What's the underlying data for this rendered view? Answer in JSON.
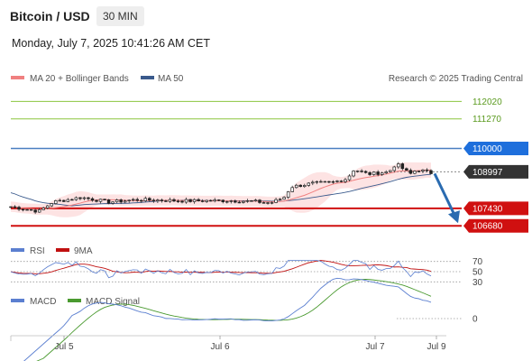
{
  "header": {
    "title": "Bitcoin / USD",
    "timeframe": "30 MIN",
    "datetime": "Monday, July 7, 2025 10:41:26 AM CET"
  },
  "legend": {
    "ma20_label": "MA 20 + Bollinger Bands",
    "ma50_label": "MA 50",
    "credit": "Research © 2025 Trading Central",
    "rsi_label": "RSI",
    "rsi_ma_label": "9MA",
    "macd_label": "MACD",
    "macd_signal_label": "MACD Signal"
  },
  "colors": {
    "ma20": "#f08080",
    "ma50": "#3a5a8c",
    "resistance_green": "#8cc63f",
    "pivot_blue": "#4a7fc1",
    "support_red": "#d01010",
    "arrow": "#2a6bb0",
    "current": "#333333",
    "rsi": "#5b7fd0",
    "rsi_ma": "#c01010",
    "macd": "#5b7fd0",
    "macd_signal": "#4a9a30"
  },
  "chart_data": [
    {
      "type": "candlestick",
      "x_ticks": [
        "Jul 5",
        "Jul 6",
        "Jul 7",
        "Jul 9"
      ],
      "ylim": [
        106300,
        112500
      ],
      "levels": [
        {
          "label": "112020",
          "value": 112020,
          "kind": "resistance"
        },
        {
          "label": "111270",
          "value": 111270,
          "kind": "resistance"
        },
        {
          "label": "110000",
          "value": 110000,
          "kind": "pivot"
        },
        {
          "label": "108997",
          "value": 108997,
          "kind": "current"
        },
        {
          "label": "107430",
          "value": 107430,
          "kind": "support"
        },
        {
          "label": "106680",
          "value": 106680,
          "kind": "support"
        }
      ],
      "forecast_arrow": {
        "from": 108997,
        "to": 106680
      }
    },
    {
      "type": "line",
      "name": "RSI",
      "ylim": [
        20,
        80
      ],
      "y_ticks": [
        "70",
        "50",
        "30"
      ]
    },
    {
      "type": "line",
      "name": "MACD",
      "y_ticks": [
        "0"
      ]
    }
  ]
}
